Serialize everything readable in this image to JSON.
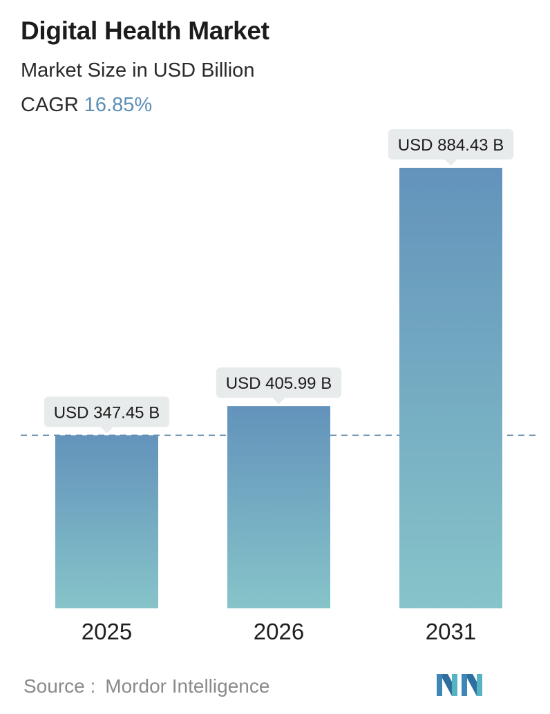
{
  "header": {
    "title": "Digital Health Market",
    "subtitle": "Market Size in USD Billion",
    "cagr_label": "CAGR",
    "cagr_value": "16.85%"
  },
  "chart_data": {
    "type": "bar",
    "title": "Digital Health Market",
    "subtitle": "Market Size in USD Billion",
    "categories": [
      "2025",
      "2026",
      "2031"
    ],
    "values": [
      347.45,
      405.99,
      884.43
    ],
    "data_labels": [
      "USD 347.45 B",
      "USD 405.99 B",
      "USD 884.43 B"
    ],
    "ylim": [
      0,
      884.43
    ],
    "reference_line": 347.45,
    "grid": false,
    "xlabel": "",
    "ylabel": "",
    "colors": {
      "bar_top": "#6393bb",
      "bar_bottom": "#86c4c9",
      "label_bg": "#e8ebec",
      "reference_line": "#5b87aa",
      "cagr_accent": "#5b8fb5"
    }
  },
  "footer": {
    "source_label": "Source :",
    "source_name": "Mordor Intelligence",
    "logo": "mordor-intelligence-logo-icon"
  }
}
